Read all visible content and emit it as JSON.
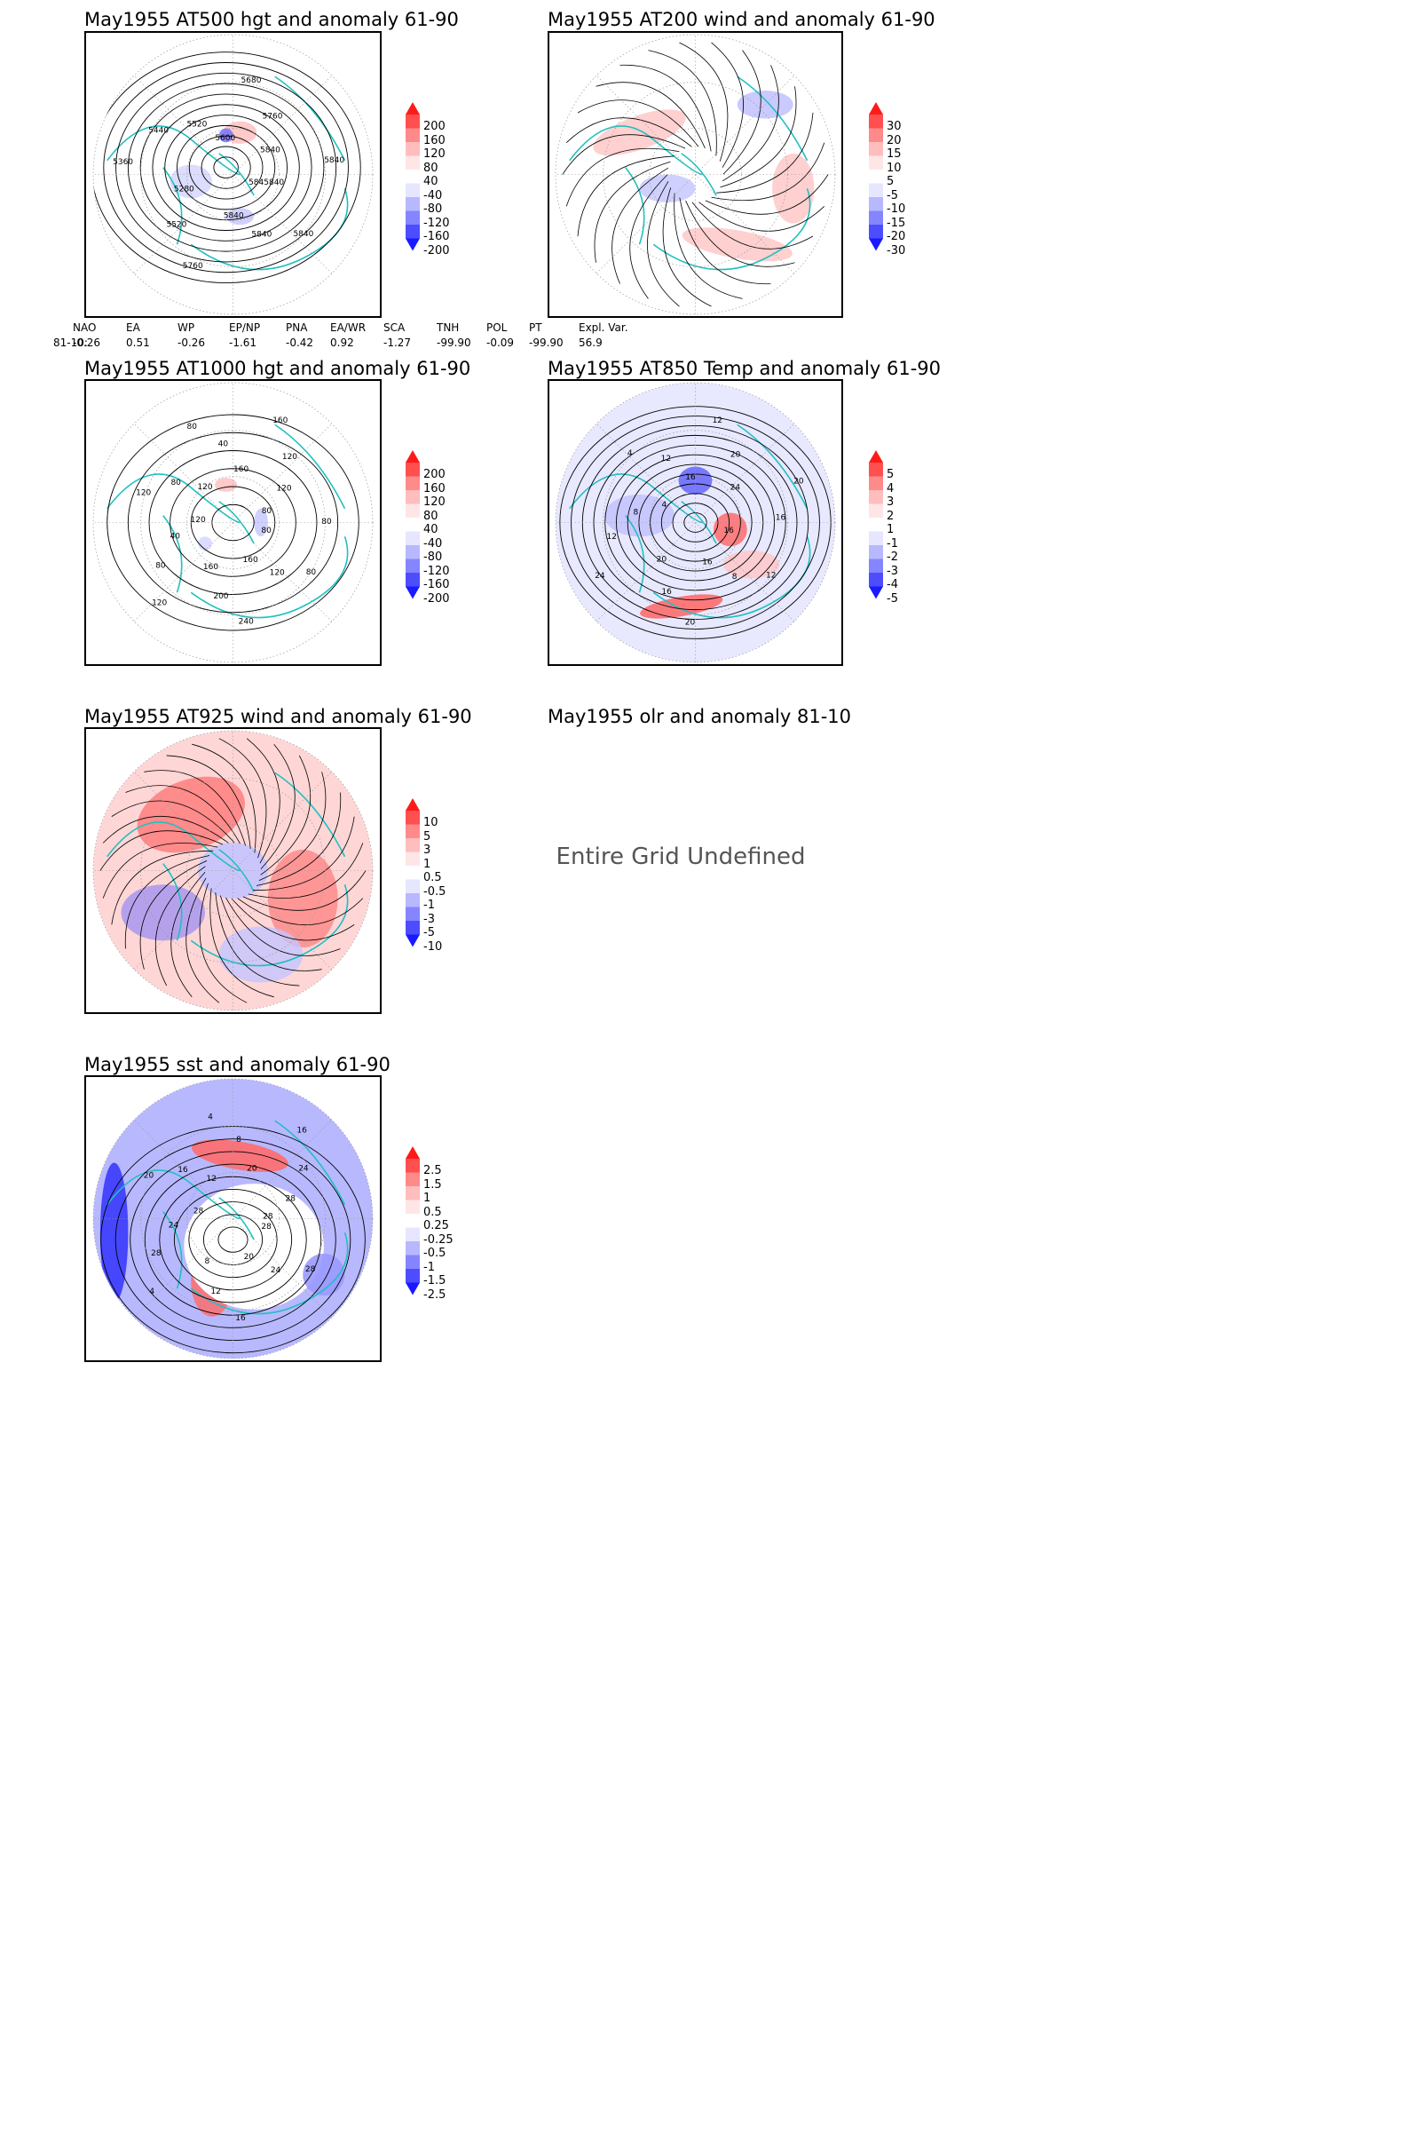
{
  "panels": [
    {
      "key": "p1",
      "title": "May1955 AT500 hgt and anomaly 61-90",
      "scale": [
        "200",
        "160",
        "120",
        "80",
        "40",
        "-40",
        "-80",
        "-120",
        "-160",
        "-200"
      ],
      "contour_labels": [
        "5845840",
        "5840",
        "5840",
        "5840",
        "5760",
        "5520",
        "5280",
        "5360",
        "5440",
        "5520",
        "5600",
        "5680",
        "5760",
        "5840",
        "5840"
      ]
    },
    {
      "key": "p2",
      "title": "May1955 AT200 wind and anomaly 61-90",
      "scale": [
        "30",
        "20",
        "15",
        "10",
        "5",
        "-5",
        "-10",
        "-15",
        "-20",
        "-30"
      ]
    },
    {
      "key": "p3",
      "title": "May1955 AT1000 hgt and anomaly 61-90",
      "scale": [
        "200",
        "160",
        "120",
        "80",
        "40",
        "-40",
        "-80",
        "-120",
        "-160",
        "-200"
      ],
      "contour_labels": [
        "80",
        "80",
        "120",
        "160",
        "240",
        "200",
        "160",
        "120",
        "80",
        "40",
        "120",
        "120",
        "80",
        "120",
        "80",
        "40",
        "160",
        "160",
        "120",
        "120",
        "80",
        "80"
      ]
    },
    {
      "key": "p4",
      "title": "May1955 AT850 Temp and anomaly 61-90",
      "scale": [
        "5",
        "4",
        "3",
        "2",
        "1",
        "-1",
        "-2",
        "-3",
        "-4",
        "-5"
      ],
      "contour_labels": [
        "16",
        "12",
        "8",
        "16",
        "20",
        "16",
        "20",
        "24",
        "12",
        "8",
        "4",
        "4",
        "12",
        "16",
        "12",
        "20",
        "24",
        "20",
        "16"
      ]
    },
    {
      "key": "p5",
      "title": "May1955 AT925 wind and anomaly 61-90",
      "scale": [
        "10",
        "5",
        "3",
        "1",
        "0.5",
        "-0.5",
        "-1",
        "-3",
        "-5",
        "-10"
      ]
    },
    {
      "key": "p6",
      "title": "May1955 olr and anomaly 81-10",
      "message": "Entire Grid Undefined"
    },
    {
      "key": "p7",
      "title": "May1955 sst and anomaly 61-90",
      "scale": [
        "2.5",
        "1.5",
        "1",
        "0.5",
        "0.25",
        "-0.25",
        "-0.5",
        "-1",
        "-1.5",
        "-2.5"
      ],
      "contour_labels": [
        "28",
        "28",
        "24",
        "20",
        "16",
        "12",
        "8",
        "4",
        "28",
        "24",
        "28",
        "20",
        "16",
        "12",
        "4",
        "8",
        "20",
        "16",
        "24",
        "28",
        "28"
      ]
    }
  ],
  "teleconnections": {
    "headers": [
      "NAO",
      "EA",
      "WP",
      "EP/NP",
      "PNA",
      "EA/WR",
      "SCA",
      "TNH",
      "POL",
      "PT",
      "Expl. Var."
    ],
    "row_label": "81-10:",
    "values": [
      "-0.26",
      "0.51",
      "-0.26",
      "-1.61",
      "-0.42",
      "0.92",
      "-1.27",
      "-99.90",
      "-0.09",
      "-99.90",
      "56.9"
    ]
  },
  "colors": {
    "coastline": "#20c0c0",
    "contour": "#000000",
    "anomaly_ramp": [
      "#ff1a1a",
      "#ff4f4f",
      "#ff8a8a",
      "#ffbdbd",
      "#ffe6e6",
      "#ffffff",
      "#e6e6ff",
      "#b8b8ff",
      "#8585ff",
      "#4d4dff",
      "#1a1aff"
    ]
  }
}
